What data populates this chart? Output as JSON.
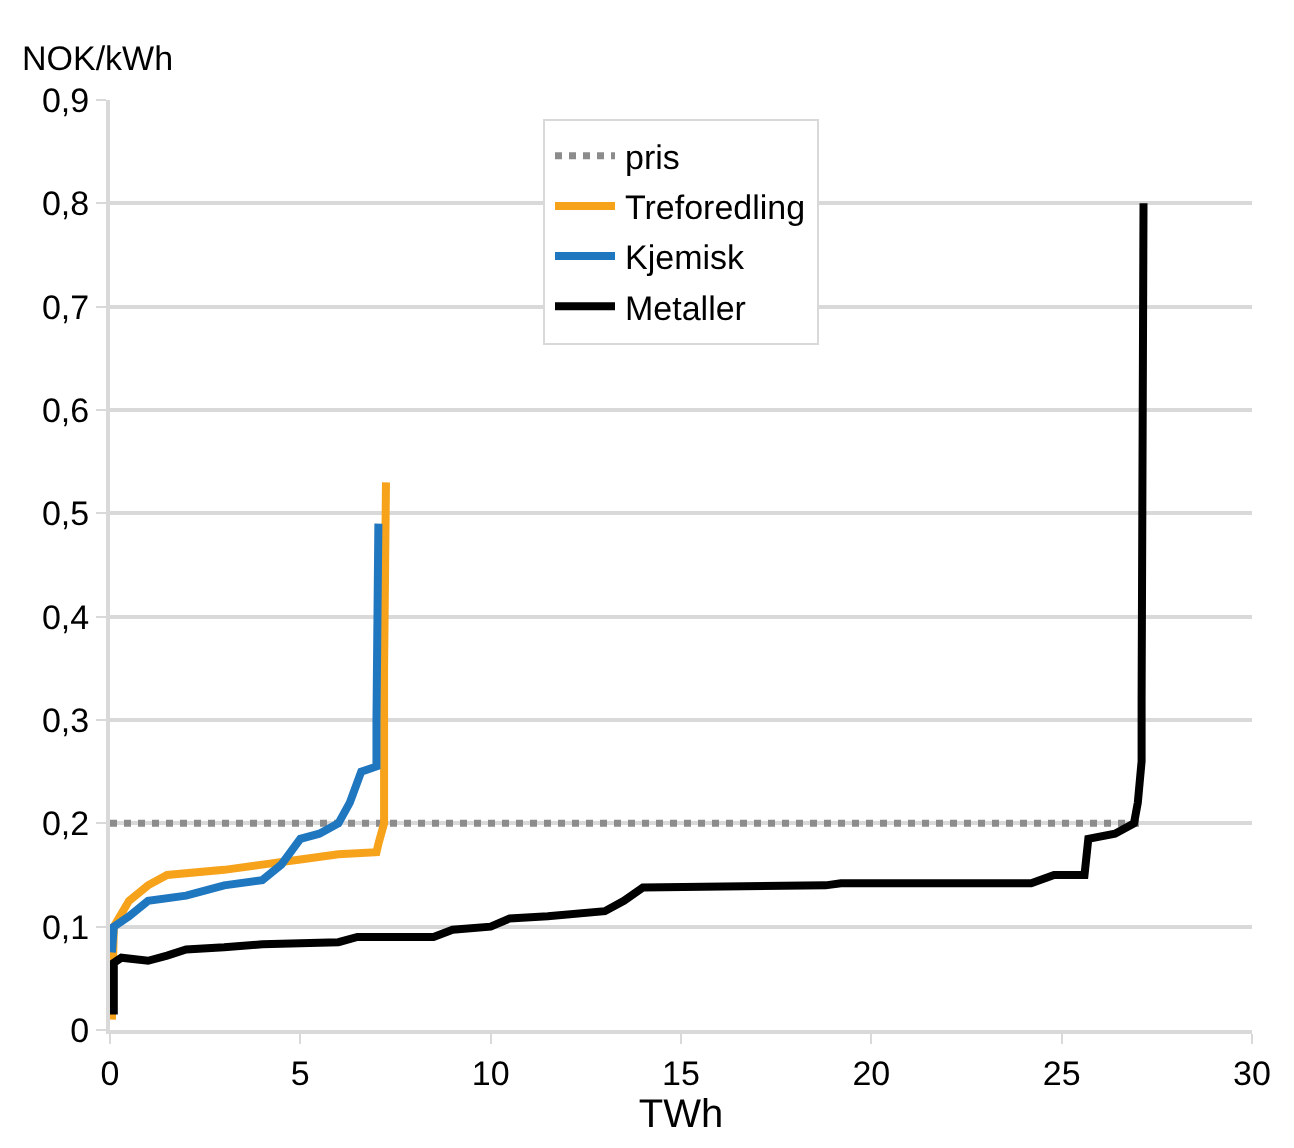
{
  "chart_data": {
    "type": "line",
    "ylabel": "NOK/kWh",
    "xlabel": "TWh",
    "xlim": [
      0,
      30
    ],
    "xticks": [
      0,
      5,
      10,
      15,
      20,
      25,
      30
    ],
    "ylim": [
      0,
      0.9
    ],
    "yticks": [
      {
        "value": 0,
        "label": "0"
      },
      {
        "value": 0.1,
        "label": "0,1"
      },
      {
        "value": 0.2,
        "label": "0,2"
      },
      {
        "value": 0.3,
        "label": "0,3"
      },
      {
        "value": 0.4,
        "label": "0,4"
      },
      {
        "value": 0.5,
        "label": "0,5"
      },
      {
        "value": 0.6,
        "label": "0,6"
      },
      {
        "value": 0.7,
        "label": "0,7"
      },
      {
        "value": 0.8,
        "label": "0,8"
      },
      {
        "value": 0.9,
        "label": "0,9"
      }
    ],
    "grid": "y",
    "legend": "top",
    "marker": "none",
    "series": [
      {
        "name": "pris",
        "color": "#8c8c8c",
        "line_style": "dotted",
        "x": [
          0,
          27.2
        ],
        "values": [
          0.2,
          0.2
        ]
      },
      {
        "name": "Treforedling",
        "color": "#f7a21b",
        "line_style": "solid",
        "x": [
          0.05,
          0.1,
          0.5,
          1,
          1.5,
          3,
          4,
          5,
          6,
          7.0,
          7.05,
          7.2,
          7.2,
          7.25
        ],
        "values": [
          0.01,
          0.1,
          0.125,
          0.14,
          0.15,
          0.155,
          0.16,
          0.165,
          0.17,
          0.172,
          0.18,
          0.2,
          0.35,
          0.53
        ]
      },
      {
        "name": "Kjemisk",
        "color": "#1f77c0",
        "line_style": "solid",
        "x": [
          0.05,
          0.1,
          0.5,
          1,
          2,
          3,
          4,
          4.5,
          5,
          5.5,
          6,
          6.3,
          6.6,
          7.0,
          7.0,
          7.05
        ],
        "values": [
          0.075,
          0.1,
          0.11,
          0.125,
          0.13,
          0.14,
          0.145,
          0.16,
          0.185,
          0.19,
          0.2,
          0.22,
          0.25,
          0.255,
          0.3,
          0.49
        ]
      },
      {
        "name": "Metaller",
        "color": "#000000",
        "line_style": "solid",
        "x": [
          0.1,
          0.1,
          0.3,
          1.0,
          1.5,
          2,
          3,
          4,
          6,
          6.5,
          8.5,
          9,
          10,
          10.5,
          11.5,
          13,
          13.5,
          14,
          18.8,
          19.2,
          24.2,
          24.8,
          25.6,
          25.7,
          26.4,
          26.9,
          27.0,
          27.1,
          27.1,
          27.15
        ],
        "values": [
          0.015,
          0.065,
          0.07,
          0.067,
          0.072,
          0.078,
          0.08,
          0.083,
          0.085,
          0.09,
          0.09,
          0.097,
          0.1,
          0.108,
          0.11,
          0.115,
          0.125,
          0.138,
          0.14,
          0.142,
          0.142,
          0.15,
          0.15,
          0.185,
          0.19,
          0.2,
          0.22,
          0.26,
          0.32,
          0.8
        ]
      }
    ]
  }
}
